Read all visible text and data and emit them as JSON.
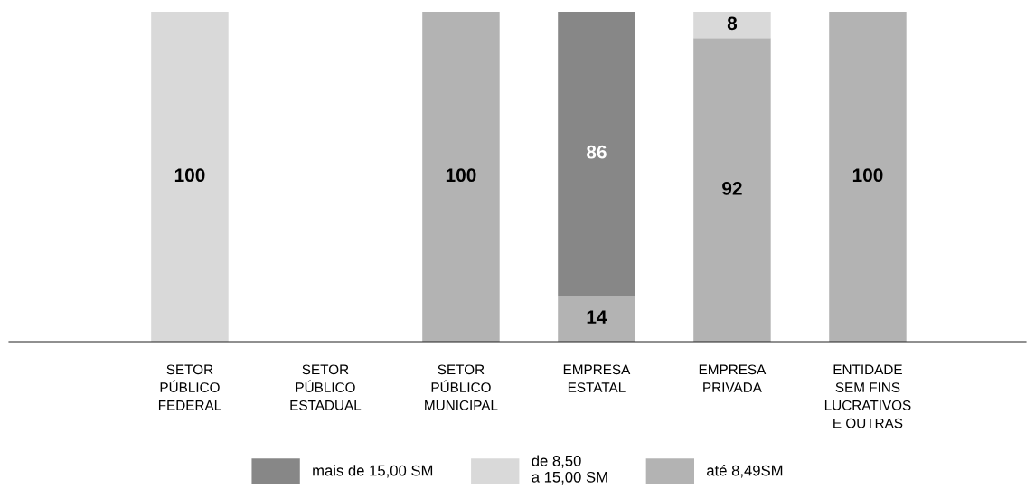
{
  "chart_data": {
    "type": "bar",
    "stacked": true,
    "data_labels": true,
    "legend": "bottom",
    "grid": false,
    "ylim": [
      0,
      100
    ],
    "categories": [
      "SETOR\nPÚBLICO\nFEDERAL",
      "SETOR\nPÚBLICO\nESTADUAL",
      "SETOR\nPÚBLICO\nMUNICIPAL",
      "EMPRESA\nESTATAL",
      "EMPRESA\nPRIVADA",
      "ENTIDADE\nSEM FINS\nLUCRATIVOS\nE OUTRAS"
    ],
    "series": [
      {
        "name": "até 8,49SM",
        "color": "#b3b3b3",
        "values": [
          null,
          null,
          100,
          14,
          92,
          100
        ]
      },
      {
        "name": "de 8,50\na 15,00 SM",
        "color": "#d9d9d9",
        "values": [
          100,
          null,
          null,
          null,
          8,
          null
        ]
      },
      {
        "name": "mais de 15,00 SM",
        "color": "#878787",
        "values": [
          null,
          null,
          null,
          86,
          null,
          null
        ]
      }
    ]
  }
}
